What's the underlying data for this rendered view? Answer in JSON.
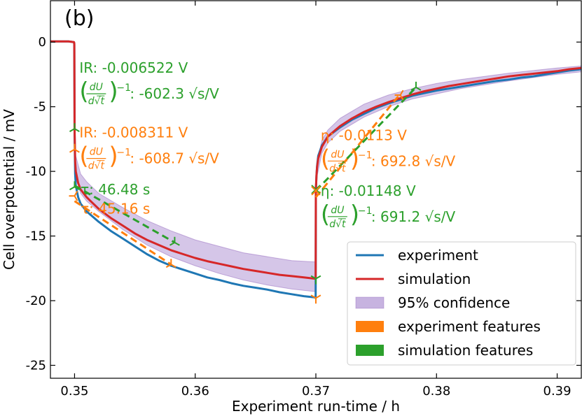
{
  "chart_data": {
    "type": "line",
    "panel_label": "(b)",
    "xlabel": "Experiment run-time  /  h",
    "ylabel": "Cell overpotential  /  mV",
    "xlim": [
      0.348,
      0.392
    ],
    "ylim": [
      -26,
      3.2
    ],
    "x_ticks": [
      0.35,
      0.36,
      0.37,
      0.38,
      0.39
    ],
    "x_tick_labels": [
      "0.35",
      "0.36",
      "0.37",
      "0.38",
      "0.39"
    ],
    "y_ticks": [
      0,
      -5,
      -10,
      -15,
      -20,
      -25
    ],
    "y_tick_labels": [
      "0",
      "-5",
      "-10",
      "-15",
      "-20",
      "-25"
    ],
    "colors": {
      "experiment": "#1f77b4",
      "simulation": "#d62728",
      "confidence": "#c7b3e0",
      "confidence_edge": "#9467bd",
      "experiment_features": "#ff7f0e",
      "simulation_features": "#2ca02c"
    },
    "series": [
      {
        "name": "experiment",
        "x": [
          0.348,
          0.3495,
          0.34995,
          0.34998,
          0.35,
          0.35005,
          0.3501,
          0.3503,
          0.3505,
          0.351,
          0.352,
          0.353,
          0.354,
          0.355,
          0.356,
          0.357,
          0.358,
          0.359,
          0.36,
          0.361,
          0.362,
          0.363,
          0.364,
          0.365,
          0.366,
          0.367,
          0.368,
          0.369,
          0.36995,
          0.36998,
          0.37,
          0.37005,
          0.3701,
          0.3702,
          0.3705,
          0.371,
          0.372,
          0.373,
          0.374,
          0.375,
          0.376,
          0.377,
          0.378,
          0.379,
          0.38,
          0.381,
          0.382,
          0.383,
          0.384,
          0.385,
          0.386,
          0.387,
          0.388,
          0.389,
          0.39,
          0.391,
          0.392
        ],
        "y": [
          0.05,
          0.05,
          0.0,
          -0.2,
          -7.2,
          -10.2,
          -11.1,
          -12.0,
          -12.5,
          -13.1,
          -13.9,
          -14.6,
          -15.2,
          -15.8,
          -16.4,
          -16.9,
          -17.3,
          -17.6,
          -17.9,
          -18.2,
          -18.4,
          -18.65,
          -18.85,
          -19.0,
          -19.15,
          -19.35,
          -19.5,
          -19.65,
          -19.75,
          -19.8,
          -11.5,
          -10.3,
          -9.6,
          -8.8,
          -8.0,
          -7.3,
          -6.6,
          -6.0,
          -5.55,
          -5.1,
          -4.75,
          -4.45,
          -4.15,
          -3.95,
          -3.75,
          -3.6,
          -3.45,
          -3.3,
          -3.15,
          -3.0,
          -2.9,
          -2.75,
          -2.65,
          -2.5,
          -2.35,
          -2.2,
          -2.1
        ]
      },
      {
        "name": "simulation",
        "x": [
          0.348,
          0.3495,
          0.34995,
          0.34998,
          0.35,
          0.35005,
          0.3501,
          0.3503,
          0.3505,
          0.351,
          0.352,
          0.353,
          0.354,
          0.355,
          0.356,
          0.357,
          0.358,
          0.359,
          0.36,
          0.361,
          0.362,
          0.363,
          0.364,
          0.365,
          0.366,
          0.367,
          0.368,
          0.369,
          0.36995,
          0.36998,
          0.37,
          0.37005,
          0.3701,
          0.3702,
          0.3705,
          0.371,
          0.372,
          0.373,
          0.374,
          0.375,
          0.376,
          0.377,
          0.378,
          0.379,
          0.38,
          0.381,
          0.382,
          0.383,
          0.384,
          0.385,
          0.386,
          0.387,
          0.388,
          0.389,
          0.39,
          0.391,
          0.392
        ],
        "y": [
          0.05,
          0.05,
          0.0,
          -0.1,
          -6.7,
          -9.2,
          -10.0,
          -10.9,
          -11.4,
          -12.0,
          -12.9,
          -13.6,
          -14.2,
          -14.8,
          -15.3,
          -15.7,
          -16.1,
          -16.4,
          -16.7,
          -16.95,
          -17.15,
          -17.35,
          -17.55,
          -17.7,
          -17.85,
          -18.0,
          -18.1,
          -18.2,
          -18.3,
          -18.3,
          -11.4,
          -10.3,
          -9.7,
          -9.0,
          -8.1,
          -7.3,
          -6.5,
          -5.9,
          -5.4,
          -5.0,
          -4.65,
          -4.35,
          -4.05,
          -3.8,
          -3.6,
          -3.4,
          -3.25,
          -3.1,
          -2.95,
          -2.8,
          -2.65,
          -2.55,
          -2.45,
          -2.35,
          -2.25,
          -2.1,
          -2.0
        ]
      },
      {
        "name": "95% confidence",
        "x": [
          0.35,
          0.3501,
          0.3505,
          0.351,
          0.352,
          0.354,
          0.356,
          0.358,
          0.36,
          0.362,
          0.364,
          0.366,
          0.368,
          0.36995,
          0.37,
          0.3701,
          0.3705,
          0.371,
          0.372,
          0.374,
          0.376,
          0.378,
          0.38,
          0.382,
          0.384,
          0.386,
          0.388,
          0.39,
          0.392
        ],
        "upper": [
          -6.2,
          -8.8,
          -10.2,
          -10.8,
          -11.7,
          -12.8,
          -13.8,
          -14.6,
          -15.3,
          -15.8,
          -16.3,
          -16.6,
          -16.9,
          -17.0,
          -10.8,
          -9.3,
          -7.6,
          -6.8,
          -5.9,
          -4.8,
          -4.1,
          -3.6,
          -3.2,
          -2.9,
          -2.65,
          -2.4,
          -2.2,
          -2.0,
          -1.85
        ],
        "lower": [
          -6.9,
          -10.5,
          -11.7,
          -12.3,
          -13.1,
          -14.5,
          -15.7,
          -16.6,
          -17.3,
          -17.9,
          -18.4,
          -18.8,
          -19.1,
          -19.3,
          -11.7,
          -10.4,
          -8.6,
          -7.8,
          -6.9,
          -5.8,
          -5.0,
          -4.4,
          -4.0,
          -3.6,
          -3.3,
          -3.0,
          -2.75,
          -2.5,
          -2.3
        ]
      },
      {
        "name": "experiment features",
        "x": [
          0.35,
          0.358
        ],
        "y": [
          -12.3,
          -17.2
        ],
        "x2": [
          0.37,
          0.377
        ],
        "y2": [
          -12.0,
          -4.0
        ]
      },
      {
        "name": "simulation features",
        "x": [
          0.35,
          0.3583
        ],
        "y": [
          -11.1,
          -15.5
        ],
        "x2": [
          0.37,
          0.3783
        ],
        "y2": [
          -11.5,
          -3.5
        ]
      }
    ],
    "markers": [
      {
        "series": "simulation features",
        "x": 0.35,
        "y": -6.7,
        "shape": "tri-up"
      },
      {
        "series": "simulation features",
        "x": 0.35,
        "y": -11.2,
        "shape": "tri-up"
      },
      {
        "series": "simulation features",
        "x": 0.3583,
        "y": -15.5,
        "shape": "tri-up"
      },
      {
        "series": "simulation features",
        "x": 0.37,
        "y": -18.3,
        "shape": "tri-down"
      },
      {
        "series": "simulation features",
        "x": 0.37,
        "y": -11.4,
        "shape": "x"
      },
      {
        "series": "simulation features",
        "x": 0.3783,
        "y": -3.5,
        "shape": "tri-up"
      },
      {
        "series": "experiment features",
        "x": 0.35,
        "y": -8.3,
        "shape": "tri-up"
      },
      {
        "series": "experiment features",
        "x": 0.35,
        "y": -11.9,
        "shape": "tri-left"
      },
      {
        "series": "experiment features",
        "x": 0.358,
        "y": -17.2,
        "shape": "tri-up"
      },
      {
        "series": "experiment features",
        "x": 0.37,
        "y": -19.8,
        "shape": "tri-down"
      },
      {
        "series": "experiment features",
        "x": 0.37,
        "y": -11.5,
        "shape": "x"
      },
      {
        "series": "experiment features",
        "x": 0.377,
        "y": -4.1,
        "shape": "tri-left"
      }
    ],
    "annotations": [
      {
        "series": "simulation features",
        "x": 0.3504,
        "y": -2.0,
        "text": "IR: -0.006522 V"
      },
      {
        "series": "simulation features",
        "x": 0.3504,
        "y": -4.0,
        "deriv": true,
        "value": ": -602.3 √s/V"
      },
      {
        "series": "experiment features",
        "x": 0.3504,
        "y": -7.0,
        "text": "IR: -0.008311 V"
      },
      {
        "series": "experiment features",
        "x": 0.3504,
        "y": -9.0,
        "deriv": true,
        "value": ": -608.7 √s/V"
      },
      {
        "series": "simulation features",
        "x": 0.3505,
        "y": -11.4,
        "text": "τ: 46.48 s"
      },
      {
        "series": "experiment features",
        "x": 0.3505,
        "y": -12.9,
        "text": "τ: 45.16 s"
      },
      {
        "series": "experiment features",
        "x": 0.3704,
        "y": -7.2,
        "text": "η: -0.0113 V"
      },
      {
        "series": "experiment features",
        "x": 0.3704,
        "y": -9.2,
        "deriv": true,
        "value": ": 692.8 √s/V"
      },
      {
        "series": "simulation features",
        "x": 0.3704,
        "y": -11.5,
        "text": "η: -0.01148 V"
      },
      {
        "series": "simulation features",
        "x": 0.3704,
        "y": -13.5,
        "deriv": true,
        "value": ": 691.2 √s/V"
      }
    ],
    "legend": {
      "position": "lower-right",
      "entries": [
        {
          "label": "experiment",
          "type": "line",
          "color_key": "experiment"
        },
        {
          "label": "simulation",
          "type": "line",
          "color_key": "simulation"
        },
        {
          "label": "95% confidence",
          "type": "patch",
          "color_key": "confidence"
        },
        {
          "label": "experiment features",
          "type": "patch",
          "color_key": "experiment_features"
        },
        {
          "label": "simulation features",
          "type": "patch",
          "color_key": "simulation_features"
        }
      ]
    }
  }
}
